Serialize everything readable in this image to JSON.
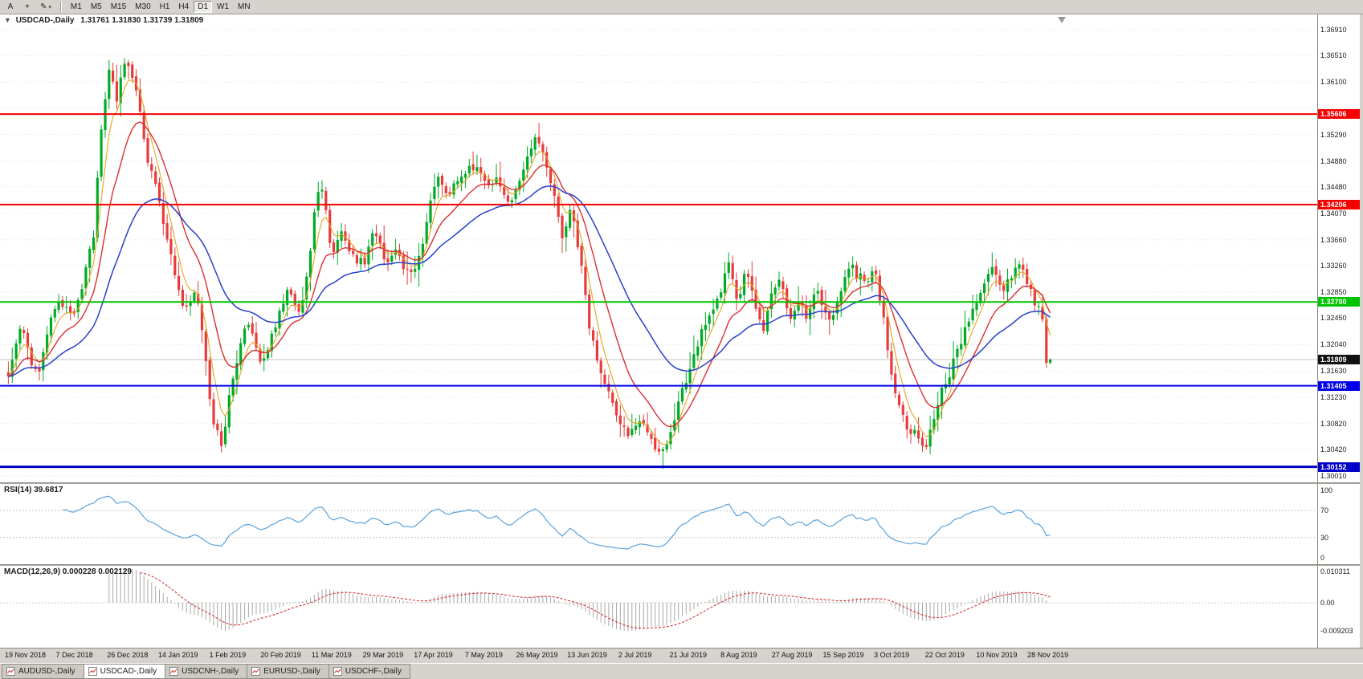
{
  "colors": {
    "candle_up": "#00ab25",
    "candle_down": "#e83b3b",
    "ma_fast": "#dfa71f",
    "ma_mid": "#dc2f2f",
    "ma_slow": "#2840cc",
    "rsi_line": "#5aa2dc",
    "macd_hist": "#a8a8a8",
    "macd_signal": "#d93030",
    "grid": "#e7e7e7",
    "bid_line": "#c4c4c4",
    "current_price_bg": "#111111",
    "toolbar_bg": "#d6d3ce",
    "chart_bg": "#ffffff"
  },
  "toolbar": {
    "left_buttons": [
      {
        "name": "cursor-tool-button",
        "glyph": "A"
      },
      {
        "name": "crosshair-tool-button",
        "glyph": "+"
      },
      {
        "name": "draw-tool-button",
        "glyph": "✎",
        "caret": "▾"
      }
    ],
    "timeframes": [
      "M1",
      "M5",
      "M15",
      "M30",
      "H1",
      "H4",
      "D1",
      "W1",
      "MN"
    ],
    "active_timeframe": "D1"
  },
  "chart": {
    "header": {
      "arrow": "▼",
      "symbol": "USDCAD-,Daily",
      "ohlc": "1.31761 1.31830 1.31739 1.31809"
    }
  },
  "price_axis": {
    "ticks": [
      "1.36910",
      "1.36510",
      "1.36100",
      "1.35290",
      "1.34880",
      "1.34480",
      "1.34070",
      "1.33660",
      "1.33260",
      "1.32850",
      "1.32450",
      "1.32040",
      "1.31630",
      "1.31230",
      "1.30820",
      "1.30420",
      "1.30010"
    ]
  },
  "hlines": [
    {
      "label": "1.35606",
      "value": 1.35606,
      "color": "#f40000",
      "width": 2
    },
    {
      "label": "1.34206",
      "value": 1.34206,
      "color": "#f40000",
      "width": 2
    },
    {
      "label": "1.32700",
      "value": 1.327,
      "color": "#00c400",
      "width": 2
    },
    {
      "label": "1.31405",
      "value": 1.31405,
      "color": "#0000e8",
      "width": 2
    },
    {
      "label": "1.30152",
      "value": 1.30152,
      "color": "#0000c8",
      "width": 3
    }
  ],
  "current_price": {
    "label": "1.31809",
    "value": 1.31809
  },
  "rsi_panel": {
    "label": "RSI(14) 39.6817",
    "period": 14,
    "current": 39.6817,
    "levels": [
      {
        "label": "100",
        "value": 100
      },
      {
        "label": "70",
        "value": 70
      },
      {
        "label": "30",
        "value": 30
      },
      {
        "label": "0",
        "value": 0
      }
    ]
  },
  "macd_panel": {
    "label": "MACD(12,26,9) 0.000228 0.002129",
    "fast": 12,
    "slow": 26,
    "signal": 9,
    "current_macd": 0.000228,
    "current_signal": 0.002129,
    "axis": [
      {
        "label": "0.010311",
        "value": 0.010311
      },
      {
        "label": "0.00",
        "value": 0
      },
      {
        "label": "-0.009203",
        "value": -0.009203
      }
    ]
  },
  "tabs": [
    {
      "label": "AUDUSD-,Daily",
      "active": false
    },
    {
      "label": "USDCAD-,Daily",
      "active": true
    },
    {
      "label": "USDCNH-,Daily",
      "active": false
    },
    {
      "label": "EURUSD-,Daily",
      "active": false
    },
    {
      "label": "USDCHF-,Daily",
      "active": false
    }
  ],
  "chart_data": {
    "type": "candlestick",
    "symbol": "USDCAD",
    "timeframe": "Daily",
    "bars": 270,
    "last_bar": {
      "open": 1.31761,
      "high": 1.3183,
      "low": 1.31739,
      "close": 1.31809
    },
    "y_axis": {
      "min": 1.3001,
      "max": 1.3691,
      "tick_step": 0.0041,
      "gridlines": [
        1.3691,
        1.3651,
        1.361,
        1.357,
        1.3529,
        1.3488,
        1.3448,
        1.3407,
        1.3366,
        1.3326,
        1.3285,
        1.3245,
        1.3204,
        1.3163,
        1.3123,
        1.3082,
        1.3042,
        1.3001
      ]
    },
    "horizontal_lines": [
      1.35606,
      1.34206,
      1.327,
      1.31405,
      1.30152
    ],
    "date_labels": [
      "19 Nov 2018",
      "7 Dec 2018",
      "26 Dec 2018",
      "14 Jan 2019",
      "1 Feb 2019",
      "20 Feb 2019",
      "11 Mar 2019",
      "29 Mar 2019",
      "17 Apr 2019",
      "7 May 2019",
      "26 May 2019",
      "13 Jun 2019",
      "2 Jul 2019",
      "21 Jul 2019",
      "8 Aug 2019",
      "27 Aug 2019",
      "15 Sep 2019",
      "3 Oct 2019",
      "22 Oct 2019",
      "10 Nov 2019",
      "28 Nov 2019"
    ],
    "indicators": {
      "moving_averages": [
        {
          "type": "ema",
          "period": 5,
          "color": "#dfa71f"
        },
        {
          "type": "ema",
          "period": 13,
          "color": "#dc2f2f"
        },
        {
          "type": "ema",
          "period": 34,
          "color": "#2840cc"
        }
      ],
      "rsi": {
        "period": 14,
        "current": 39.6817,
        "levels": [
          70,
          30
        ]
      },
      "macd": {
        "fast": 12,
        "slow": 26,
        "signal": 9,
        "current": 0.000228,
        "signal_current": 0.002129
      }
    },
    "price_path_anchors": [
      [
        0.0,
        1.316
      ],
      [
        0.012,
        1.323
      ],
      [
        0.028,
        1.3152
      ],
      [
        0.04,
        1.3235
      ],
      [
        0.049,
        1.3268
      ],
      [
        0.062,
        1.3242
      ],
      [
        0.072,
        1.33
      ],
      [
        0.082,
        1.338
      ],
      [
        0.09,
        1.356
      ],
      [
        0.098,
        1.3642
      ],
      [
        0.104,
        1.3575
      ],
      [
        0.112,
        1.365
      ],
      [
        0.122,
        1.3605
      ],
      [
        0.132,
        1.35
      ],
      [
        0.14,
        1.3455
      ],
      [
        0.15,
        1.339
      ],
      [
        0.162,
        1.329
      ],
      [
        0.172,
        1.3255
      ],
      [
        0.18,
        1.33
      ],
      [
        0.188,
        1.319
      ],
      [
        0.196,
        1.309
      ],
      [
        0.205,
        1.3048
      ],
      [
        0.214,
        1.314
      ],
      [
        0.222,
        1.3205
      ],
      [
        0.23,
        1.3245
      ],
      [
        0.238,
        1.3195
      ],
      [
        0.244,
        1.317
      ],
      [
        0.252,
        1.322
      ],
      [
        0.26,
        1.325
      ],
      [
        0.268,
        1.329
      ],
      [
        0.278,
        1.3245
      ],
      [
        0.288,
        1.332
      ],
      [
        0.295,
        1.3435
      ],
      [
        0.302,
        1.345
      ],
      [
        0.31,
        1.334
      ],
      [
        0.318,
        1.3385
      ],
      [
        0.326,
        1.3355
      ],
      [
        0.334,
        1.333
      ],
      [
        0.342,
        1.3335
      ],
      [
        0.352,
        1.338
      ],
      [
        0.362,
        1.3335
      ],
      [
        0.372,
        1.335
      ],
      [
        0.382,
        1.332
      ],
      [
        0.391,
        1.3325
      ],
      [
        0.4,
        1.338
      ],
      [
        0.41,
        1.3465
      ],
      [
        0.42,
        1.343
      ],
      [
        0.43,
        1.3455
      ],
      [
        0.44,
        1.347
      ],
      [
        0.45,
        1.348
      ],
      [
        0.46,
        1.344
      ],
      [
        0.47,
        1.346
      ],
      [
        0.48,
        1.343
      ],
      [
        0.489,
        1.344
      ],
      [
        0.498,
        1.349
      ],
      [
        0.507,
        1.354
      ],
      [
        0.515,
        1.348
      ],
      [
        0.524,
        1.343
      ],
      [
        0.532,
        1.337
      ],
      [
        0.54,
        1.342
      ],
      [
        0.55,
        1.332
      ],
      [
        0.56,
        1.321
      ],
      [
        0.57,
        1.316
      ],
      [
        0.58,
        1.311
      ],
      [
        0.587,
        1.3085
      ],
      [
        0.597,
        1.3062
      ],
      [
        0.607,
        1.3085
      ],
      [
        0.617,
        1.305
      ],
      [
        0.627,
        1.3038
      ],
      [
        0.636,
        1.3062
      ],
      [
        0.645,
        1.312
      ],
      [
        0.655,
        1.3175
      ],
      [
        0.665,
        1.322
      ],
      [
        0.675,
        1.3255
      ],
      [
        0.684,
        1.329
      ],
      [
        0.692,
        1.333
      ],
      [
        0.7,
        1.3275
      ],
      [
        0.708,
        1.332
      ],
      [
        0.716,
        1.327
      ],
      [
        0.725,
        1.323
      ],
      [
        0.733,
        1.329
      ],
      [
        0.741,
        1.331
      ],
      [
        0.75,
        1.3235
      ],
      [
        0.758,
        1.328
      ],
      [
        0.766,
        1.325
      ],
      [
        0.774,
        1.329
      ],
      [
        0.782,
        1.326
      ],
      [
        0.79,
        1.324
      ],
      [
        0.798,
        1.3275
      ],
      [
        0.806,
        1.333
      ],
      [
        0.815,
        1.331
      ],
      [
        0.823,
        1.33
      ],
      [
        0.831,
        1.333
      ],
      [
        0.84,
        1.324
      ],
      [
        0.848,
        1.316
      ],
      [
        0.856,
        1.3105
      ],
      [
        0.864,
        1.3075
      ],
      [
        0.872,
        1.306
      ],
      [
        0.88,
        1.3045
      ],
      [
        0.888,
        1.3085
      ],
      [
        0.896,
        1.314
      ],
      [
        0.904,
        1.316
      ],
      [
        0.912,
        1.32
      ],
      [
        0.92,
        1.3235
      ],
      [
        0.929,
        1.327
      ],
      [
        0.938,
        1.33
      ],
      [
        0.946,
        1.332
      ],
      [
        0.954,
        1.329
      ],
      [
        0.962,
        1.331
      ],
      [
        0.97,
        1.3325
      ],
      [
        0.978,
        1.33
      ],
      [
        0.986,
        1.327
      ],
      [
        0.993,
        1.3245
      ],
      [
        1.0,
        1.3181
      ]
    ]
  }
}
